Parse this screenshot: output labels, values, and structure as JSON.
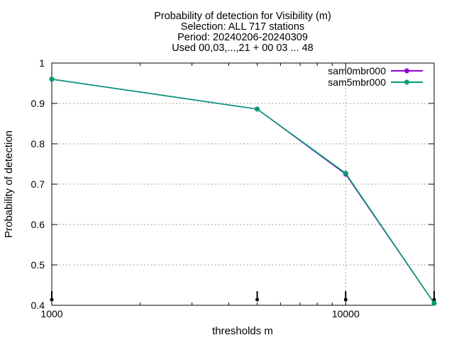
{
  "chart_data": {
    "type": "line",
    "title_lines": [
      "Probability of detection  for Visibility (m)",
      "Selection: ALL    717 stations",
      "Period: 20240206-20240309",
      "Used 00,03,...,21 + 00 03 ... 48"
    ],
    "xlabel": "thresholds m",
    "ylabel": "Probability of detection",
    "x_scale": "log",
    "xlim": [
      1000,
      20000
    ],
    "ylim": [
      0.4,
      1.0
    ],
    "x_tick_labels": [
      {
        "value": 1000,
        "label": "1000"
      },
      {
        "value": 10000,
        "label": "10000"
      }
    ],
    "y_ticks": [
      0.4,
      0.5,
      0.6,
      0.7,
      0.8,
      0.9,
      1.0
    ],
    "y_tick_labels": [
      "0.4",
      "0.5",
      "0.6",
      "0.7",
      "0.8",
      "0.9",
      "1"
    ],
    "grid": true,
    "legend_position": "top-right",
    "x": [
      1000,
      5000,
      10000,
      20000
    ],
    "series": [
      {
        "name": "sam0mbr000",
        "color": "#9400d3",
        "values": [
          0.96,
          0.886,
          0.725,
          0.405
        ]
      },
      {
        "name": "sam5mbr000",
        "color": "#009e73",
        "values": [
          0.96,
          0.886,
          0.727,
          0.405
        ]
      }
    ],
    "count_markers_x": [
      1000,
      5000,
      10000,
      20000
    ]
  }
}
